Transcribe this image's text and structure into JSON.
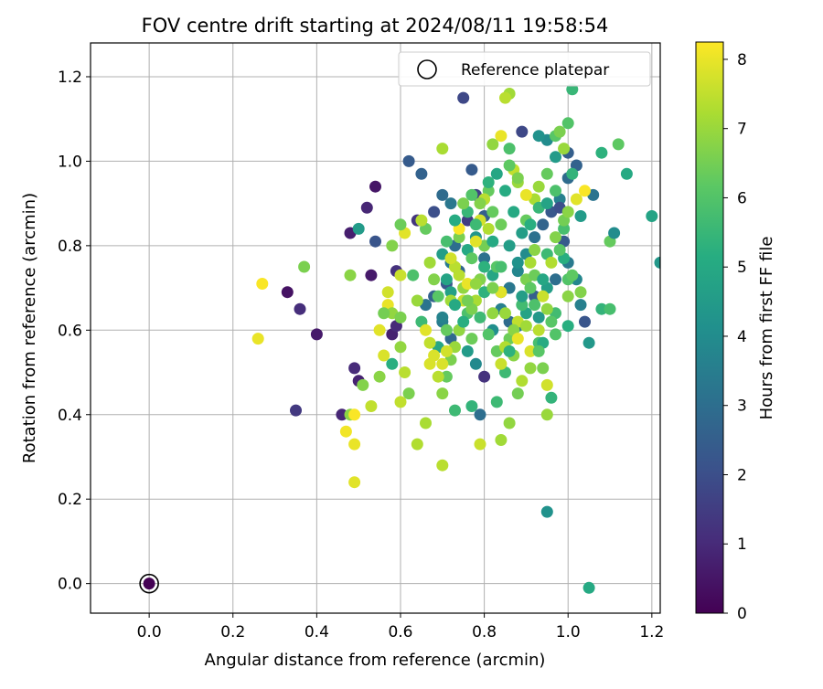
{
  "chart_data": {
    "type": "scatter",
    "title": "FOV centre drift starting at 2024/08/11 19:58:54",
    "xlabel": "Angular distance from reference (arcmin)",
    "ylabel": "Rotation from reference (arcmin)",
    "xlim": [
      -0.14,
      1.22
    ],
    "ylim": [
      -0.07,
      1.28
    ],
    "xticks": [
      0.0,
      0.2,
      0.4,
      0.6,
      0.8,
      1.0,
      1.2
    ],
    "xtick_labels": [
      "0.0",
      "0.2",
      "0.4",
      "0.6",
      "0.8",
      "1.0",
      "1.2"
    ],
    "yticks": [
      0.0,
      0.2,
      0.4,
      0.6,
      0.8,
      1.0,
      1.2
    ],
    "ytick_labels": [
      "0.0",
      "0.2",
      "0.4",
      "0.6",
      "0.8",
      "1.0",
      "1.2"
    ],
    "grid": true,
    "legend": {
      "position": "top-right",
      "entries": [
        "Reference platepar"
      ]
    },
    "reference": {
      "x": 0.0,
      "y": 0.0
    },
    "colorbar": {
      "label": "Hours from first FF file",
      "min": 0,
      "max": 8.25,
      "ticks": [
        0,
        1,
        2,
        3,
        4,
        5,
        6,
        7,
        8
      ],
      "tick_labels": [
        "0",
        "1",
        "2",
        "3",
        "4",
        "5",
        "6",
        "7",
        "8"
      ],
      "colormap": "viridis"
    },
    "points": [
      [
        0.0,
        0.0,
        0.0
      ],
      [
        0.52,
        0.89,
        0.9
      ],
      [
        0.54,
        0.94,
        0.5
      ],
      [
        0.48,
        0.83,
        0.7
      ],
      [
        0.53,
        0.73,
        0.6
      ],
      [
        0.58,
        0.59,
        0.8
      ],
      [
        0.59,
        0.61,
        1.0
      ],
      [
        0.59,
        0.74,
        1.2
      ],
      [
        0.49,
        0.51,
        1.0
      ],
      [
        0.5,
        0.48,
        0.8
      ],
      [
        0.46,
        0.4,
        0.9
      ],
      [
        0.4,
        0.59,
        0.6
      ],
      [
        0.33,
        0.69,
        0.4
      ],
      [
        0.36,
        0.65,
        1.1
      ],
      [
        0.35,
        0.41,
        1.4
      ],
      [
        0.5,
        0.84,
        4.5
      ],
      [
        0.54,
        0.81,
        2.2
      ],
      [
        0.62,
        1.0,
        2.4
      ],
      [
        0.65,
        0.97,
        2.6
      ],
      [
        0.64,
        0.86,
        1.3
      ],
      [
        0.68,
        0.88,
        2.0
      ],
      [
        0.7,
        0.92,
        2.9
      ],
      [
        0.72,
        0.9,
        3.3
      ],
      [
        0.75,
        1.15,
        1.8
      ],
      [
        0.77,
        0.98,
        2.4
      ],
      [
        0.78,
        0.92,
        1.6
      ],
      [
        0.8,
        0.87,
        2.5
      ],
      [
        0.76,
        0.86,
        1.5
      ],
      [
        0.73,
        0.8,
        3.0
      ],
      [
        0.72,
        0.76,
        3.4
      ],
      [
        0.71,
        0.71,
        2.3
      ],
      [
        0.68,
        0.68,
        2.6
      ],
      [
        0.66,
        0.66,
        3.2
      ],
      [
        0.7,
        0.62,
        3.5
      ],
      [
        0.72,
        0.58,
        2.8
      ],
      [
        0.74,
        0.6,
        4.2
      ],
      [
        0.76,
        0.55,
        4.5
      ],
      [
        0.78,
        0.52,
        3.9
      ],
      [
        0.8,
        0.49,
        1.2
      ],
      [
        0.82,
        0.6,
        4.1
      ],
      [
        0.84,
        0.65,
        3.6
      ],
      [
        0.86,
        0.7,
        3.3
      ],
      [
        0.88,
        0.74,
        3.8
      ],
      [
        0.9,
        0.78,
        4.0
      ],
      [
        0.92,
        0.82,
        3.1
      ],
      [
        0.94,
        0.85,
        2.7
      ],
      [
        0.96,
        0.88,
        2.3
      ],
      [
        0.98,
        0.91,
        3.6
      ],
      [
        1.0,
        0.96,
        2.9
      ],
      [
        1.02,
        0.99,
        2.6
      ],
      [
        0.97,
        1.01,
        4.5
      ],
      [
        0.95,
        1.05,
        4.0
      ],
      [
        0.93,
        1.06,
        4.2
      ],
      [
        0.89,
        1.07,
        1.8
      ],
      [
        1.01,
        1.17,
        5.5
      ],
      [
        1.0,
        1.09,
        6.0
      ],
      [
        1.0,
        1.02,
        2.5
      ],
      [
        0.98,
        0.89,
        2.0
      ],
      [
        0.99,
        0.81,
        2.4
      ],
      [
        1.0,
        0.76,
        3.4
      ],
      [
        1.02,
        0.72,
        3.8
      ],
      [
        1.03,
        0.66,
        3.6
      ],
      [
        1.04,
        0.62,
        2.2
      ],
      [
        1.05,
        0.57,
        4.4
      ],
      [
        1.05,
        -0.01,
        5.0
      ],
      [
        0.95,
        0.17,
        4.2
      ],
      [
        1.08,
        0.65,
        5.4
      ],
      [
        1.1,
        0.65,
        5.8
      ],
      [
        1.1,
        0.81,
        6.3
      ],
      [
        1.11,
        0.83,
        4.0
      ],
      [
        1.08,
        1.02,
        5.3
      ],
      [
        1.12,
        1.04,
        6.2
      ],
      [
        1.14,
        0.97,
        5.0
      ],
      [
        1.2,
        0.87,
        4.8
      ],
      [
        1.22,
        0.76,
        4.4
      ],
      [
        1.06,
        0.92,
        3.2
      ],
      [
        1.03,
        0.87,
        4.5
      ],
      [
        0.99,
        0.77,
        5.2
      ],
      [
        0.97,
        0.72,
        3.0
      ],
      [
        0.95,
        0.7,
        4.6
      ],
      [
        0.92,
        0.68,
        2.5
      ],
      [
        0.9,
        0.64,
        4.8
      ],
      [
        0.88,
        0.61,
        3.4
      ],
      [
        0.86,
        0.62,
        2.9
      ],
      [
        0.84,
        0.69,
        2.6
      ],
      [
        0.82,
        0.73,
        4.9
      ],
      [
        0.8,
        0.77,
        3.1
      ],
      [
        0.78,
        0.82,
        4.3
      ],
      [
        0.76,
        0.79,
        5.0
      ],
      [
        0.74,
        0.74,
        2.7
      ],
      [
        0.72,
        0.69,
        4.7
      ],
      [
        0.7,
        0.63,
        3.7
      ],
      [
        0.69,
        0.56,
        4.9
      ],
      [
        0.71,
        0.49,
        6.3
      ],
      [
        0.77,
        0.42,
        5.4
      ],
      [
        0.79,
        0.4,
        3.0
      ],
      [
        0.83,
        0.43,
        5.6
      ],
      [
        0.86,
        0.38,
        6.9
      ],
      [
        0.84,
        0.34,
        7.1
      ],
      [
        0.79,
        0.33,
        7.6
      ],
      [
        0.7,
        0.28,
        7.4
      ],
      [
        0.73,
        0.41,
        5.6
      ],
      [
        0.66,
        0.38,
        7.2
      ],
      [
        0.64,
        0.33,
        7.3
      ],
      [
        0.62,
        0.45,
        6.6
      ],
      [
        0.6,
        0.43,
        7.5
      ],
      [
        0.61,
        0.5,
        7.4
      ],
      [
        0.55,
        0.49,
        6.8
      ],
      [
        0.56,
        0.54,
        7.8
      ],
      [
        0.53,
        0.42,
        7.5
      ],
      [
        0.51,
        0.47,
        6.7
      ],
      [
        0.49,
        0.33,
        8.0
      ],
      [
        0.49,
        0.24,
        7.9
      ],
      [
        0.47,
        0.36,
        8.1
      ],
      [
        0.48,
        0.4,
        6.8
      ],
      [
        0.49,
        0.4,
        8.2
      ],
      [
        0.27,
        0.71,
        8.2
      ],
      [
        0.26,
        0.58,
        8.0
      ],
      [
        0.37,
        0.75,
        6.6
      ],
      [
        0.48,
        0.73,
        6.8
      ],
      [
        0.55,
        0.6,
        7.9
      ],
      [
        0.57,
        0.69,
        7.7
      ],
      [
        0.57,
        0.66,
        8.0
      ],
      [
        0.58,
        0.64,
        6.9
      ],
      [
        0.56,
        0.64,
        6.5
      ],
      [
        0.6,
        0.63,
        6.6
      ],
      [
        0.6,
        0.56,
        6.9
      ],
      [
        0.58,
        0.52,
        5.2
      ],
      [
        0.6,
        0.73,
        7.6
      ],
      [
        0.61,
        0.83,
        7.9
      ],
      [
        0.6,
        0.85,
        6.4
      ],
      [
        0.58,
        0.8,
        6.7
      ],
      [
        0.63,
        0.73,
        5.9
      ],
      [
        0.64,
        0.67,
        7.0
      ],
      [
        0.65,
        0.62,
        5.6
      ],
      [
        0.66,
        0.6,
        7.9
      ],
      [
        0.67,
        0.57,
        7.5
      ],
      [
        0.68,
        0.54,
        7.8
      ],
      [
        0.69,
        0.49,
        7.4
      ],
      [
        0.67,
        0.52,
        7.8
      ],
      [
        0.7,
        0.45,
        6.8
      ],
      [
        0.71,
        0.6,
        6.3
      ],
      [
        0.72,
        0.67,
        7.1
      ],
      [
        0.73,
        0.75,
        7.4
      ],
      [
        0.74,
        0.82,
        6.6
      ],
      [
        0.75,
        0.7,
        6.9
      ],
      [
        0.76,
        0.64,
        5.9
      ],
      [
        0.77,
        0.58,
        6.4
      ],
      [
        0.78,
        0.67,
        7.2
      ],
      [
        0.79,
        0.72,
        6.7
      ],
      [
        0.8,
        0.8,
        6.5
      ],
      [
        0.81,
        0.84,
        7.3
      ],
      [
        0.82,
        0.88,
        6.3
      ],
      [
        0.83,
        0.75,
        6.1
      ],
      [
        0.84,
        0.69,
        7.9
      ],
      [
        0.85,
        0.64,
        7.0
      ],
      [
        0.86,
        0.58,
        6.4
      ],
      [
        0.87,
        0.54,
        6.8
      ],
      [
        0.88,
        0.62,
        7.5
      ],
      [
        0.89,
        0.66,
        5.7
      ],
      [
        0.9,
        0.72,
        6.6
      ],
      [
        0.91,
        0.76,
        7.2
      ],
      [
        0.92,
        0.79,
        6.8
      ],
      [
        0.93,
        0.57,
        5.8
      ],
      [
        0.94,
        0.51,
        6.6
      ],
      [
        0.95,
        0.47,
        7.7
      ],
      [
        0.96,
        0.44,
        5.4
      ],
      [
        0.95,
        0.4,
        7.0
      ],
      [
        0.93,
        0.6,
        7.4
      ],
      [
        0.91,
        0.55,
        7.8
      ],
      [
        0.92,
        0.91,
        7.2
      ],
      [
        0.93,
        0.94,
        7.0
      ],
      [
        0.95,
        0.97,
        6.3
      ],
      [
        0.97,
        1.06,
        6.1
      ],
      [
        0.98,
        1.07,
        6.6
      ],
      [
        0.99,
        1.03,
        7.0
      ],
      [
        1.01,
        0.97,
        5.4
      ],
      [
        1.02,
        0.91,
        7.9
      ],
      [
        1.04,
        0.93,
        8.2
      ],
      [
        1.0,
        0.72,
        6.0
      ],
      [
        1.0,
        0.68,
        6.8
      ],
      [
        0.97,
        0.64,
        5.7
      ],
      [
        0.96,
        0.62,
        6.1
      ],
      [
        0.95,
        0.65,
        6.9
      ],
      [
        0.92,
        0.73,
        6.4
      ],
      [
        0.9,
        0.86,
        6.3
      ],
      [
        0.88,
        0.95,
        7.0
      ],
      [
        0.87,
        0.98,
        7.5
      ],
      [
        0.86,
        1.03,
        5.9
      ],
      [
        0.86,
        1.16,
        7.1
      ],
      [
        0.85,
        1.15,
        7.4
      ],
      [
        0.84,
        1.06,
        8.0
      ],
      [
        0.82,
        1.04,
        6.9
      ],
      [
        0.81,
        0.93,
        6.3
      ],
      [
        0.8,
        0.91,
        7.4
      ],
      [
        0.79,
        0.86,
        7.7
      ],
      [
        0.78,
        0.81,
        7.9
      ],
      [
        0.77,
        0.77,
        6.2
      ],
      [
        0.76,
        0.71,
        8.0
      ],
      [
        0.75,
        0.67,
        7.6
      ],
      [
        0.74,
        0.6,
        6.9
      ],
      [
        0.73,
        0.56,
        7.0
      ],
      [
        0.72,
        0.53,
        6.6
      ],
      [
        0.71,
        0.55,
        7.7
      ],
      [
        0.7,
        0.52,
        7.8
      ],
      [
        0.69,
        0.68,
        6.1
      ],
      [
        0.68,
        0.72,
        6.7
      ],
      [
        0.67,
        0.76,
        7.1
      ],
      [
        0.66,
        0.84,
        6.3
      ],
      [
        0.65,
        0.86,
        7.4
      ],
      [
        0.7,
        1.03,
        7.2
      ],
      [
        0.74,
        0.84,
        8.2
      ],
      [
        0.76,
        0.88,
        5.5
      ],
      [
        0.78,
        0.85,
        5.6
      ],
      [
        0.79,
        0.9,
        6.7
      ],
      [
        0.81,
        0.95,
        5.3
      ],
      [
        0.83,
        0.97,
        4.9
      ],
      [
        0.85,
        0.93,
        5.1
      ],
      [
        0.87,
        0.88,
        5.0
      ],
      [
        0.89,
        0.83,
        4.6
      ],
      [
        0.91,
        0.85,
        5.2
      ],
      [
        0.93,
        0.89,
        5.5
      ],
      [
        0.95,
        0.9,
        4.8
      ],
      [
        0.97,
        0.93,
        5.9
      ],
      [
        0.99,
        0.84,
        5.8
      ],
      [
        1.01,
        0.73,
        6.2
      ],
      [
        1.03,
        0.69,
        6.7
      ],
      [
        1.0,
        0.61,
        5.2
      ],
      [
        0.97,
        0.59,
        6.0
      ],
      [
        0.94,
        0.57,
        5.1
      ],
      [
        0.93,
        0.55,
        6.1
      ],
      [
        0.91,
        0.51,
        6.9
      ],
      [
        0.89,
        0.48,
        7.3
      ],
      [
        0.88,
        0.45,
        6.5
      ],
      [
        0.85,
        0.5,
        5.6
      ],
      [
        0.83,
        0.55,
        6.3
      ],
      [
        0.81,
        0.59,
        6.0
      ],
      [
        0.79,
        0.63,
        5.6
      ],
      [
        0.77,
        0.65,
        6.6
      ],
      [
        0.75,
        0.62,
        5.2
      ],
      [
        0.73,
        0.66,
        5.0
      ],
      [
        0.71,
        0.72,
        4.8
      ],
      [
        0.7,
        0.78,
        4.6
      ],
      [
        0.71,
        0.81,
        5.8
      ],
      [
        0.73,
        0.86,
        5.1
      ],
      [
        0.75,
        0.9,
        6.6
      ],
      [
        0.77,
        0.92,
        6.0
      ],
      [
        0.86,
        0.8,
        4.6
      ],
      [
        0.88,
        0.76,
        4.2
      ],
      [
        0.84,
        0.75,
        5.8
      ],
      [
        0.8,
        0.69,
        5.3
      ],
      [
        0.82,
        0.64,
        6.9
      ],
      [
        0.85,
        0.56,
        7.3
      ],
      [
        0.87,
        0.6,
        6.8
      ],
      [
        0.89,
        0.68,
        4.6
      ],
      [
        0.91,
        0.7,
        6.2
      ],
      [
        0.93,
        0.63,
        4.4
      ],
      [
        0.95,
        0.78,
        5.6
      ],
      [
        0.97,
        0.82,
        6.7
      ],
      [
        0.99,
        0.86,
        6.5
      ],
      [
        1.0,
        0.88,
        6.8
      ],
      [
        0.9,
        0.92,
        8.0
      ],
      [
        0.88,
        0.96,
        6.6
      ],
      [
        0.86,
        0.99,
        6.2
      ],
      [
        0.84,
        0.85,
        6.4
      ],
      [
        0.82,
        0.81,
        5.0
      ],
      [
        0.8,
        0.75,
        5.3
      ],
      [
        0.78,
        0.71,
        6.9
      ],
      [
        0.76,
        0.67,
        6.5
      ],
      [
        0.74,
        0.73,
        7.4
      ],
      [
        0.72,
        0.77,
        7.7
      ],
      [
        0.94,
        0.72,
        4.9
      ],
      [
        0.96,
        0.76,
        7.3
      ],
      [
        0.98,
        0.79,
        6.1
      ],
      [
        0.94,
        0.68,
        7.6
      ],
      [
        0.92,
        0.66,
        5.9
      ],
      [
        0.9,
        0.61,
        7.1
      ],
      [
        0.88,
        0.58,
        8.0
      ],
      [
        0.86,
        0.55,
        5.3
      ],
      [
        0.84,
        0.52,
        7.6
      ],
      [
        0.82,
        0.7,
        6.6
      ]
    ]
  }
}
